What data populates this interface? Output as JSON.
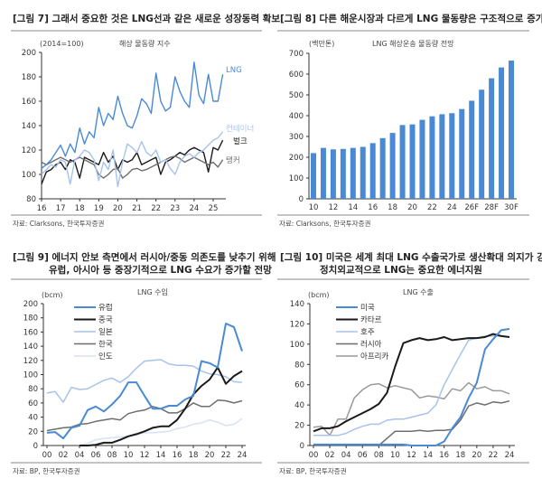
{
  "colors": {
    "blue": "#4a8ad4",
    "black": "#1a1a1a",
    "light_blue": "#a8c3ea",
    "gray": "#6e6e6e",
    "pale_blue": "#d6e2f4",
    "light_gray": "#9a9a9a"
  },
  "chart_data": [
    {
      "type": "line",
      "figure": "[그림 7]",
      "title": "[그림 7] 그래서 중요한 것은 LNG선과 같은 새로운 성장동력 확보",
      "subtitle": "해상 물동량 지수",
      "ylabel": "(2014=100)",
      "ylim": [
        80,
        200
      ],
      "yticks": [
        "80",
        "100",
        "120",
        "140",
        "160",
        "180",
        "200"
      ],
      "xticks": [
        "16",
        "17",
        "18",
        "19",
        "20",
        "21",
        "22",
        "23",
        "24",
        "25"
      ],
      "xlim": [
        2016,
        2025.7
      ],
      "x": [
        2016,
        2016.25,
        2016.5,
        2016.75,
        2017,
        2017.25,
        2017.5,
        2017.75,
        2018,
        2018.25,
        2018.5,
        2018.75,
        2019,
        2019.25,
        2019.5,
        2019.75,
        2020,
        2020.25,
        2020.5,
        2020.75,
        2021,
        2021.25,
        2021.5,
        2021.75,
        2022,
        2022.25,
        2022.5,
        2022.75,
        2023,
        2023.25,
        2023.5,
        2023.75,
        2024,
        2024.25,
        2024.5,
        2024.75,
        2025,
        2025.25,
        2025.5
      ],
      "series": [
        {
          "name": "LNG",
          "color": "#4a8ad4",
          "values": [
            105,
            108,
            112,
            118,
            124,
            115,
            125,
            118,
            138,
            125,
            135,
            130,
            155,
            140,
            150,
            145,
            164,
            150,
            140,
            138,
            148,
            162,
            158,
            150,
            183,
            160,
            152,
            155,
            180,
            168,
            160,
            155,
            192,
            165,
            158,
            182,
            160,
            160,
            182
          ]
        },
        {
          "name": "컨테이너",
          "color": "#a8c3ea",
          "values": [
            100,
            104,
            108,
            106,
            112,
            110,
            92,
            112,
            115,
            120,
            118,
            112,
            95,
            110,
            104,
            120,
            90,
            110,
            125,
            122,
            118,
            127,
            118,
            115,
            120,
            110,
            112,
            105,
            100,
            110,
            115,
            117,
            114,
            118,
            120,
            124,
            128,
            130,
            135
          ]
        },
        {
          "name": "벌크",
          "color": "#1a1a1a",
          "values": [
            92,
            102,
            104,
            108,
            110,
            104,
            112,
            110,
            97,
            114,
            112,
            110,
            108,
            118,
            110,
            115,
            104,
            112,
            110,
            112,
            118,
            108,
            110,
            112,
            114,
            100,
            110,
            112,
            115,
            118,
            116,
            120,
            122,
            120,
            118,
            102,
            122,
            120,
            128
          ]
        },
        {
          "name": "탱커",
          "color": "#6e6e6e",
          "values": [
            110,
            108,
            110,
            112,
            114,
            112,
            110,
            112,
            114,
            112,
            110,
            108,
            100,
            97,
            100,
            104,
            105,
            97,
            100,
            104,
            105,
            103,
            104,
            106,
            108,
            110,
            112,
            114,
            115,
            113,
            110,
            112,
            114,
            112,
            110,
            108,
            110,
            106,
            112
          ]
        }
      ],
      "source": "자료: Clarksons, 한국투자증권"
    },
    {
      "type": "bar",
      "figure": "[그림 8]",
      "title": "[그림 8] 다른 해운시장과 다르게 LNG 물동량은 구조적으로 증가",
      "subtitle": "LNG 해상운송 물동량 전망",
      "ylabel": "(백만톤)",
      "ylim": [
        0,
        700
      ],
      "yticks": [
        "0",
        "100",
        "200",
        "300",
        "400",
        "500",
        "600",
        "700"
      ],
      "categories": [
        "10",
        "11",
        "12",
        "13",
        "14",
        "15",
        "16",
        "17",
        "18",
        "19",
        "20",
        "21",
        "22",
        "23",
        "24",
        "25F",
        "26F",
        "27F",
        "28F",
        "29F",
        "30F"
      ],
      "xticks": [
        "10",
        "12",
        "14",
        "16",
        "18",
        "20",
        "22",
        "24",
        "26F",
        "28F",
        "30F"
      ],
      "values": [
        220,
        245,
        238,
        240,
        245,
        250,
        268,
        292,
        317,
        355,
        358,
        380,
        397,
        407,
        412,
        432,
        472,
        525,
        580,
        632,
        665
      ],
      "color": "#4a8ad4",
      "source": "자료: Clarksons, 한국투자증권"
    },
    {
      "type": "line",
      "figure": "[그림 9]",
      "title": "[그림 9] 에너지 안보 측면에서 러시아/중동 의존도를 낮추기 위해",
      "title2": "유럽, 아시아 등 중장기적으로 LNG 수요가 증가할 전망",
      "subtitle": "LNG 수입",
      "ylabel": "(bcm)",
      "ylim": [
        0,
        200
      ],
      "yticks": [
        "0",
        "20",
        "40",
        "60",
        "80",
        "100",
        "120",
        "140",
        "160",
        "180",
        "200"
      ],
      "xticks": [
        "00",
        "02",
        "04",
        "06",
        "08",
        "10",
        "12",
        "14",
        "16",
        "18",
        "20",
        "22",
        "24"
      ],
      "x": [
        2000,
        2001,
        2002,
        2003,
        2004,
        2005,
        2006,
        2007,
        2008,
        2009,
        2010,
        2011,
        2012,
        2013,
        2014,
        2015,
        2016,
        2017,
        2018,
        2019,
        2020,
        2021,
        2022,
        2023,
        2024
      ],
      "legend": "top-left",
      "series": [
        {
          "name": "유럽",
          "color": "#4a8ad4",
          "width": 2,
          "values": [
            18,
            19,
            10,
            25,
            28,
            50,
            55,
            48,
            58,
            70,
            89,
            89,
            70,
            52,
            52,
            56,
            56,
            65,
            70,
            119,
            116,
            110,
            172,
            167,
            133
          ]
        },
        {
          "name": "중국",
          "color": "#1a1a1a",
          "width": 2,
          "values": [
            null,
            null,
            null,
            null,
            0,
            0,
            1,
            4,
            4,
            8,
            13,
            16,
            20,
            25,
            27,
            27,
            36,
            52,
            72,
            84,
            93,
            110,
            87,
            98,
            105
          ]
        },
        {
          "name": "일본",
          "color": "#a8c3ea",
          "width": 1.5,
          "values": [
            74,
            76,
            61,
            82,
            79,
            80,
            86,
            92,
            95,
            89,
            97,
            109,
            119,
            120,
            121,
            115,
            113,
            113,
            112,
            105,
            101,
            100,
            97,
            90,
            89
          ]
        },
        {
          "name": "한국",
          "color": "#6e6e6e",
          "width": 1.5,
          "values": [
            21,
            23,
            25,
            26,
            30,
            31,
            34,
            36,
            38,
            36,
            45,
            48,
            50,
            55,
            52,
            46,
            46,
            52,
            60,
            55,
            55,
            64,
            63,
            60,
            63
          ]
        },
        {
          "name": "인도",
          "color": "#d6e2f4",
          "width": 1.5,
          "values": [
            null,
            null,
            null,
            null,
            0,
            3,
            8,
            10,
            11,
            12,
            13,
            15,
            18,
            18,
            19,
            20,
            24,
            26,
            30,
            32,
            36,
            33,
            28,
            30,
            38
          ]
        }
      ],
      "source": "자료: BP, 한국투자증권"
    },
    {
      "type": "line",
      "figure": "[그림 10]",
      "title": "[그림 10] 미국은 세계 최대 LNG 수출국가로 생산확대 의지가 강해",
      "title2": "정치외교적으로 LNG는 중요한 에너지원",
      "subtitle": "LNG 수출",
      "ylabel": "(bcm)",
      "ylim": [
        0,
        140
      ],
      "yticks": [
        "0",
        "20",
        "40",
        "60",
        "80",
        "100",
        "120",
        "140"
      ],
      "xticks": [
        "00",
        "02",
        "04",
        "06",
        "08",
        "10",
        "12",
        "14",
        "16",
        "18",
        "20",
        "22",
        "24"
      ],
      "x": [
        2000,
        2001,
        2002,
        2003,
        2004,
        2005,
        2006,
        2007,
        2008,
        2009,
        2010,
        2011,
        2012,
        2013,
        2014,
        2015,
        2016,
        2017,
        2018,
        2019,
        2020,
        2021,
        2022,
        2023,
        2024
      ],
      "legend": "top-left",
      "series": [
        {
          "name": "미국",
          "color": "#4a8ad4",
          "width": 2,
          "values": [
            1,
            1,
            1,
            1,
            1,
            1,
            1,
            1,
            1,
            1,
            1,
            1,
            0,
            0,
            0,
            0,
            4,
            17,
            28,
            47,
            62,
            95,
            105,
            114,
            115
          ]
        },
        {
          "name": "카타르",
          "color": "#1a1a1a",
          "width": 2,
          "values": [
            14,
            17,
            17,
            19,
            24,
            28,
            32,
            36,
            41,
            52,
            78,
            101,
            104,
            106,
            104,
            105,
            107,
            104,
            105,
            106,
            106,
            107,
            110,
            108,
            107
          ]
        },
        {
          "name": "호주",
          "color": "#a8c3ea",
          "width": 1.5,
          "values": [
            10,
            10,
            10,
            10,
            12,
            16,
            19,
            21,
            21,
            25,
            26,
            26,
            28,
            30,
            32,
            40,
            60,
            75,
            90,
            104,
            106,
            108,
            108,
            108,
            107
          ]
        },
        {
          "name": "러시아",
          "color": "#6e6e6e",
          "width": 1.5,
          "values": [
            null,
            null,
            null,
            null,
            null,
            null,
            null,
            null,
            0,
            7,
            14,
            14,
            14,
            15,
            14,
            15,
            15,
            16,
            25,
            39,
            42,
            40,
            43,
            42,
            44
          ]
        },
        {
          "name": "아프리카",
          "color": "#9a9a9a",
          "width": 1.5,
          "values": [
            18,
            19,
            10,
            26,
            26,
            47,
            55,
            60,
            61,
            57,
            59,
            57,
            55,
            47,
            49,
            48,
            46,
            56,
            54,
            62,
            56,
            58,
            54,
            54,
            51
          ]
        }
      ],
      "source": "자료: BP, 한국투자증권"
    }
  ]
}
